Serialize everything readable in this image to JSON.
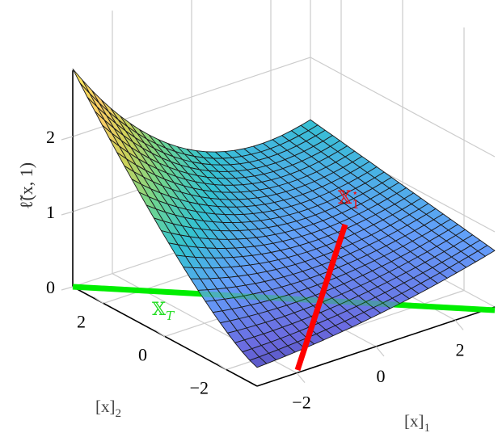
{
  "chart_data": {
    "type": "surface3d",
    "title": "",
    "xlabel": "[x]_1",
    "ylabel": "[x]_2",
    "zlabel": "ℓ̃(x, 1)",
    "xlim": [
      -3,
      3
    ],
    "ylim": [
      -3,
      3
    ],
    "zlim": [
      0,
      2.9
    ],
    "x_ticks": [
      -2,
      0,
      2
    ],
    "y_ticks": [
      -2,
      0,
      2
    ],
    "z_ticks": [
      0,
      1,
      2
    ],
    "x_tick_labels": [
      "−2",
      "0",
      "2"
    ],
    "y_tick_labels": [
      "−2",
      "0",
      "2"
    ],
    "z_tick_labels": [
      "0",
      "1",
      "2"
    ],
    "grid": true,
    "colormap": "parula",
    "surface": {
      "description": "Loss surface, high (~2.9) at x1=-3, x2=+3 corner, low (~0.3) near x1=-3, x2=-3 corner; rises to ~1 along x2=+3 back edge and to ~0.5 at x1=+3",
      "grid_points": 25
    },
    "series": [
      {
        "name": "X_T",
        "label_display": "𝕏_T",
        "color": "#00ee00",
        "type": "line",
        "description": "horizontal line at z = 0 along x1 direction at x2 = +3 (front-left edge to right)"
      },
      {
        "name": "X_1^*",
        "label_display": "𝕏₁*",
        "color": "#ff0000",
        "type": "line",
        "description": "curve on surface along x1 ≈ -1.9 from x2=-3 to x2=+3"
      }
    ]
  },
  "labels": {
    "z_axis": "ℓ̃(x, 1)",
    "x1_axis": "[x]",
    "x1_sub": "1",
    "x2_axis": "[x]",
    "x2_sub": "2",
    "xt_main": "𝕏",
    "xt_sub": "T",
    "x1star_main": "𝕏",
    "x1star_sub": "1",
    "x1star_sup": "⋆"
  },
  "colors": {
    "grid": "#cccccc",
    "axis": "#000000",
    "mesh_edge": "#1a1a1a",
    "xt_line": "#00ee00",
    "x1star_line": "#ff0000",
    "xt_label": "#22dd22",
    "x1star_label": "#ee1111"
  }
}
